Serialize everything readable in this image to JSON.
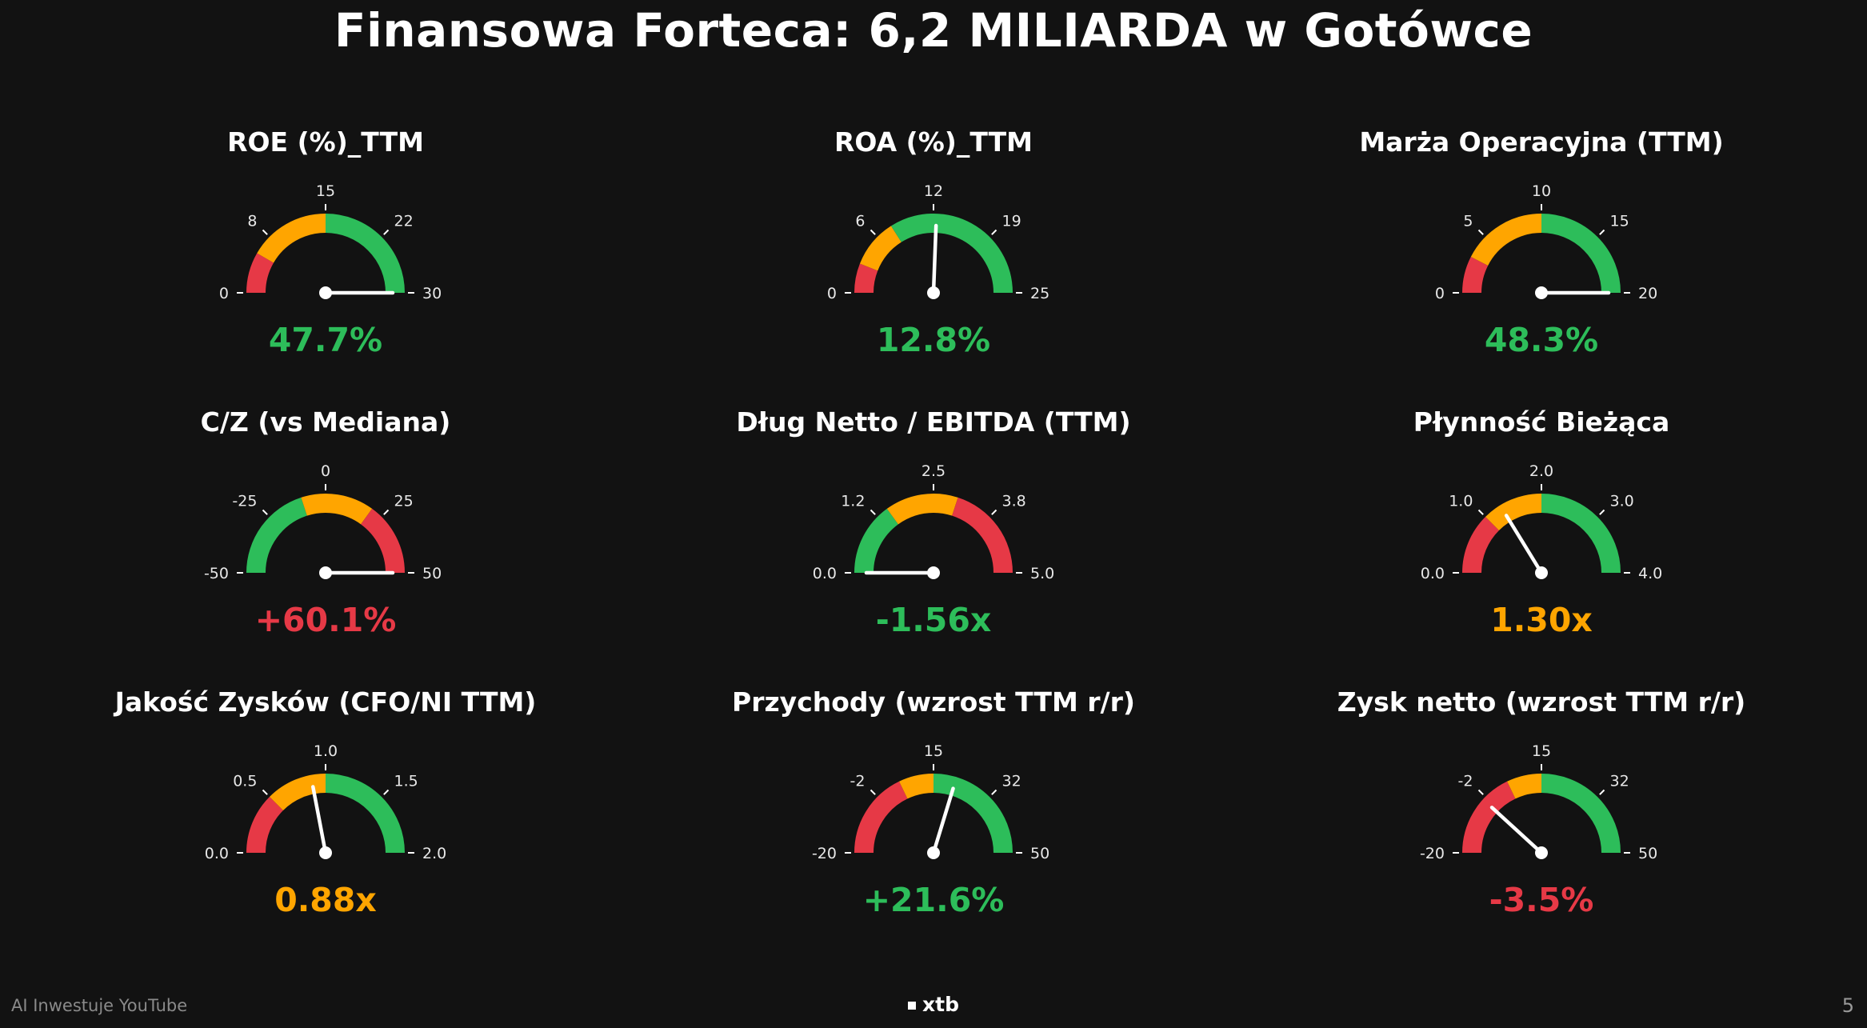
{
  "title": "Finansowa Forteca: 6,2 MILIARDA w Gotówce",
  "colors": {
    "red": "#e63946",
    "orange": "#ffa500",
    "green": "#2dbd5a",
    "needle": "#ffffff",
    "background": "#121212"
  },
  "footer": {
    "left": "AI Inwestuje YouTube",
    "center": "xtb",
    "page": "5"
  },
  "chart_data": [
    {
      "type": "gauge",
      "title": "ROE (%)_TTM",
      "min": 0,
      "max": 30,
      "ticks": [
        "0",
        "8",
        "15",
        "22",
        "30"
      ],
      "zones": [
        {
          "from": 0,
          "to": 5,
          "color": "red"
        },
        {
          "from": 5,
          "to": 15,
          "color": "orange"
        },
        {
          "from": 15,
          "to": 30,
          "color": "green"
        }
      ],
      "needle_value": 30,
      "value_label": "47.7%",
      "value_color": "green"
    },
    {
      "type": "gauge",
      "title": "ROA (%)_TTM",
      "min": 0,
      "max": 25,
      "ticks": [
        "0",
        "6",
        "12",
        "19",
        "25"
      ],
      "zones": [
        {
          "from": 0,
          "to": 3,
          "color": "red"
        },
        {
          "from": 3,
          "to": 8,
          "color": "orange"
        },
        {
          "from": 8,
          "to": 25,
          "color": "green"
        }
      ],
      "needle_value": 12.8,
      "value_label": "12.8%",
      "value_color": "green"
    },
    {
      "type": "gauge",
      "title": "Marża Operacyjna (TTM)",
      "min": 0,
      "max": 20,
      "ticks": [
        "0",
        "5",
        "10",
        "15",
        "20"
      ],
      "zones": [
        {
          "from": 0,
          "to": 3,
          "color": "red"
        },
        {
          "from": 3,
          "to": 10,
          "color": "orange"
        },
        {
          "from": 10,
          "to": 20,
          "color": "green"
        }
      ],
      "needle_value": 20,
      "value_label": "48.3%",
      "value_color": "green"
    },
    {
      "type": "gauge",
      "title": "C/Z (vs Mediana)",
      "min": -50,
      "max": 50,
      "ticks": [
        "-50",
        "-25",
        "0",
        "25",
        "50"
      ],
      "zones": [
        {
          "from": -50,
          "to": -10,
          "color": "green"
        },
        {
          "from": -10,
          "to": 20,
          "color": "orange"
        },
        {
          "from": 20,
          "to": 50,
          "color": "red"
        }
      ],
      "needle_value": 50,
      "value_label": "+60.1%",
      "value_color": "red"
    },
    {
      "type": "gauge",
      "title": "Dług Netto / EBITDA (TTM)",
      "min": 0,
      "max": 5,
      "ticks": [
        "0.0",
        "1.2",
        "2.5",
        "3.8",
        "5.0"
      ],
      "zones": [
        {
          "from": 0,
          "to": 1.5,
          "color": "green"
        },
        {
          "from": 1.5,
          "to": 3,
          "color": "orange"
        },
        {
          "from": 3,
          "to": 5,
          "color": "red"
        }
      ],
      "needle_value": 0,
      "value_label": "-1.56x",
      "value_color": "green"
    },
    {
      "type": "gauge",
      "title": "Płynność Bieżąca",
      "min": 0,
      "max": 4,
      "ticks": [
        "0.0",
        "1.0",
        "2.0",
        "3.0",
        "4.0"
      ],
      "zones": [
        {
          "from": 0,
          "to": 1,
          "color": "red"
        },
        {
          "from": 1,
          "to": 2,
          "color": "orange"
        },
        {
          "from": 2,
          "to": 4,
          "color": "green"
        }
      ],
      "needle_value": 1.3,
      "value_label": "1.30x",
      "value_color": "orange"
    },
    {
      "type": "gauge",
      "title": "Jakość Zysków (CFO/NI TTM)",
      "min": 0,
      "max": 2,
      "ticks": [
        "0.0",
        "0.5",
        "1.0",
        "1.5",
        "2.0"
      ],
      "zones": [
        {
          "from": 0,
          "to": 0.5,
          "color": "red"
        },
        {
          "from": 0.5,
          "to": 1,
          "color": "orange"
        },
        {
          "from": 1,
          "to": 2,
          "color": "green"
        }
      ],
      "needle_value": 0.88,
      "value_label": "0.88x",
      "value_color": "orange"
    },
    {
      "type": "gauge",
      "title": "Przychody (wzrost TTM r/r)",
      "min": -20,
      "max": 50,
      "ticks": [
        "-20",
        "-2",
        "15",
        "32",
        "50"
      ],
      "zones": [
        {
          "from": -20,
          "to": 5,
          "color": "red"
        },
        {
          "from": 5,
          "to": 15,
          "color": "orange"
        },
        {
          "from": 15,
          "to": 50,
          "color": "green"
        }
      ],
      "needle_value": 21.6,
      "value_label": "+21.6%",
      "value_color": "green"
    },
    {
      "type": "gauge",
      "title": "Zysk netto (wzrost TTM r/r)",
      "min": -20,
      "max": 50,
      "ticks": [
        "-20",
        "-2",
        "15",
        "32",
        "50"
      ],
      "zones": [
        {
          "from": -20,
          "to": 5,
          "color": "red"
        },
        {
          "from": 5,
          "to": 15,
          "color": "orange"
        },
        {
          "from": 15,
          "to": 50,
          "color": "green"
        }
      ],
      "needle_value": -3.5,
      "value_label": "-3.5%",
      "value_color": "red"
    }
  ]
}
